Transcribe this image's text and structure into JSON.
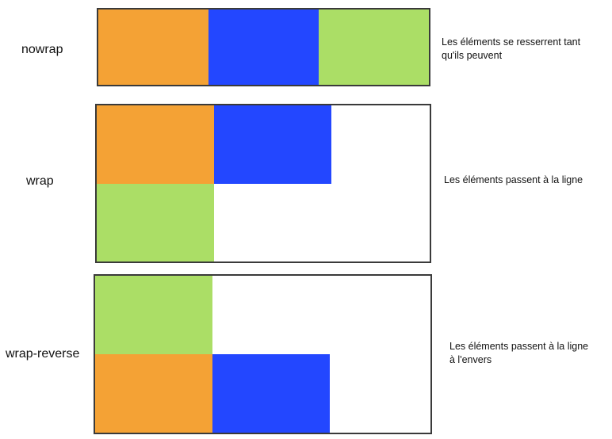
{
  "colors": {
    "orange": "#f4a235",
    "blue": "#2347ff",
    "green": "#abde66",
    "border": "#3a3a3a"
  },
  "rows": [
    {
      "label": "nowrap",
      "description_lines": [
        "Les éléments se resserrent tant",
        "qu'ils peuvent"
      ],
      "box_order": [
        "orange",
        "blue",
        "green"
      ]
    },
    {
      "label": "wrap",
      "description_lines": [
        "Les éléments passent à la ligne"
      ],
      "box_order": [
        "orange",
        "blue",
        "green"
      ]
    },
    {
      "label": "wrap-reverse",
      "description_lines": [
        "Les éléments passent à la ligne",
        "à l'envers"
      ],
      "box_order": [
        "orange",
        "blue",
        "green"
      ]
    }
  ]
}
